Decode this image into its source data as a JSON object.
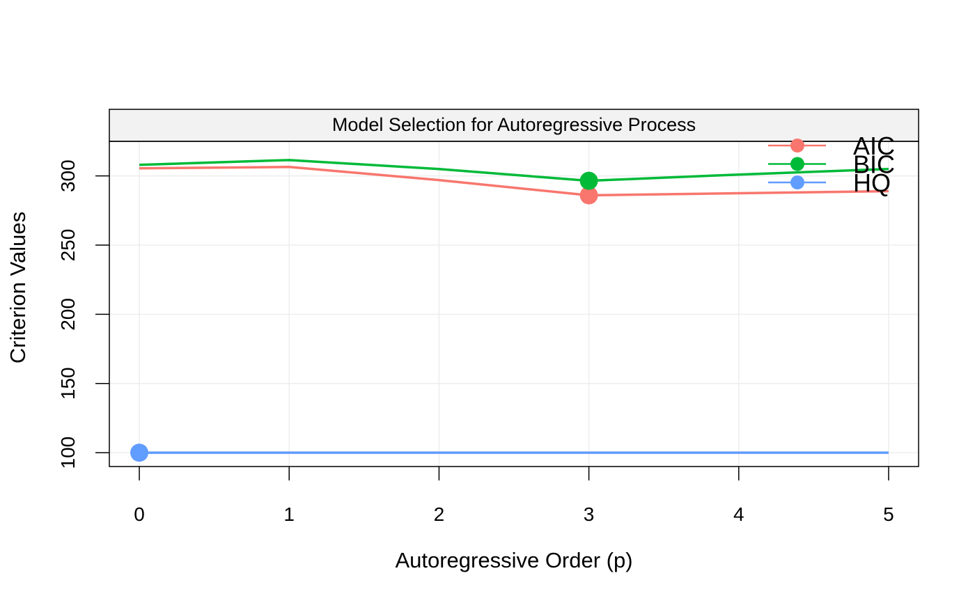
{
  "chart_data": {
    "type": "line",
    "title": "Model Selection for Autoregressive Process",
    "xlabel": "Autoregressive Order (p)",
    "ylabel": "Criterion Values",
    "x": [
      0,
      1,
      2,
      3,
      4,
      5
    ],
    "xticks": [
      "0",
      "1",
      "2",
      "3",
      "4",
      "5"
    ],
    "yticks": [
      "100",
      "150",
      "200",
      "250",
      "300"
    ],
    "xlim": [
      -0.2,
      5.2
    ],
    "ylim": [
      90,
      325
    ],
    "grid": true,
    "legend_position": "top-right",
    "series": [
      {
        "name": "AIC",
        "color": "#F8766D",
        "values": [
          305.5,
          306.5,
          297,
          286,
          287.5,
          289
        ],
        "highlight_index": 3
      },
      {
        "name": "BIC",
        "color": "#00BA38",
        "values": [
          308,
          311.5,
          305,
          296.5,
          301,
          305
        ],
        "highlight_index": 3
      },
      {
        "name": "HQ",
        "color": "#619CFF",
        "values": [
          100,
          100,
          100,
          100,
          100,
          100
        ],
        "highlight_index": 0
      }
    ]
  }
}
